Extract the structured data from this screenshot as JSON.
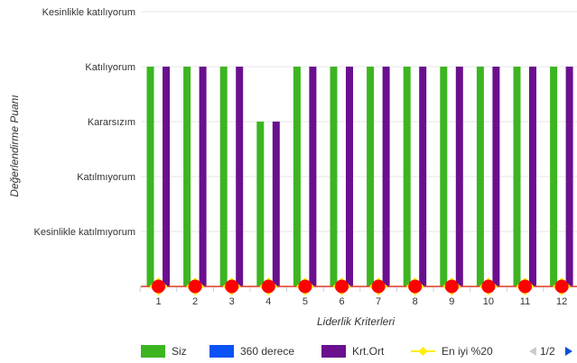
{
  "chart_data": {
    "type": "bar",
    "title": "",
    "xlabel": "Liderlik Kriterleri",
    "ylabel": "Değerlendirme Puanı",
    "categories": [
      "1",
      "2",
      "3",
      "4",
      "5",
      "6",
      "7",
      "8",
      "9",
      "10",
      "11",
      "12"
    ],
    "y_ticks": [
      {
        "value": 0,
        "label": ""
      },
      {
        "value": 1,
        "label": "Kesinlikle katılmıyorum"
      },
      {
        "value": 2,
        "label": "Katılmıyorum"
      },
      {
        "value": 3,
        "label": "Kararsızım"
      },
      {
        "value": 4,
        "label": "Katılıyorum"
      },
      {
        "value": 5,
        "label": "Kesinlikle katılıyorum"
      }
    ],
    "ylim": [
      0,
      5
    ],
    "grid": true,
    "legend_position": "bottom",
    "series": [
      {
        "name": "Siz",
        "type": "bar",
        "color": "#3cb521",
        "values": [
          4,
          4,
          4,
          3,
          4,
          4,
          4,
          4,
          4,
          4,
          4,
          4
        ]
      },
      {
        "name": "360 derece",
        "type": "bar",
        "color": "#0a52f5",
        "values": [
          0,
          0,
          0,
          0,
          0,
          0,
          0,
          0,
          0,
          0,
          0,
          0
        ]
      },
      {
        "name": "Krt.Ort",
        "type": "bar",
        "color": "#6a0f8e",
        "values": [
          4,
          4,
          4,
          3,
          4,
          4,
          4,
          4,
          4,
          4,
          4,
          4
        ]
      },
      {
        "name": "En iyi %20",
        "type": "line",
        "color": "#ffee00",
        "values": [
          0,
          0,
          0,
          0,
          0,
          0,
          0,
          0,
          0,
          0,
          0,
          0
        ]
      }
    ],
    "markers": {
      "color": "#ff0000",
      "line_color": "#e8402a",
      "values": [
        0,
        0,
        0,
        0,
        0,
        0,
        0,
        0,
        0,
        0,
        0,
        0
      ]
    },
    "legend_pager": {
      "text": "1/2"
    }
  }
}
